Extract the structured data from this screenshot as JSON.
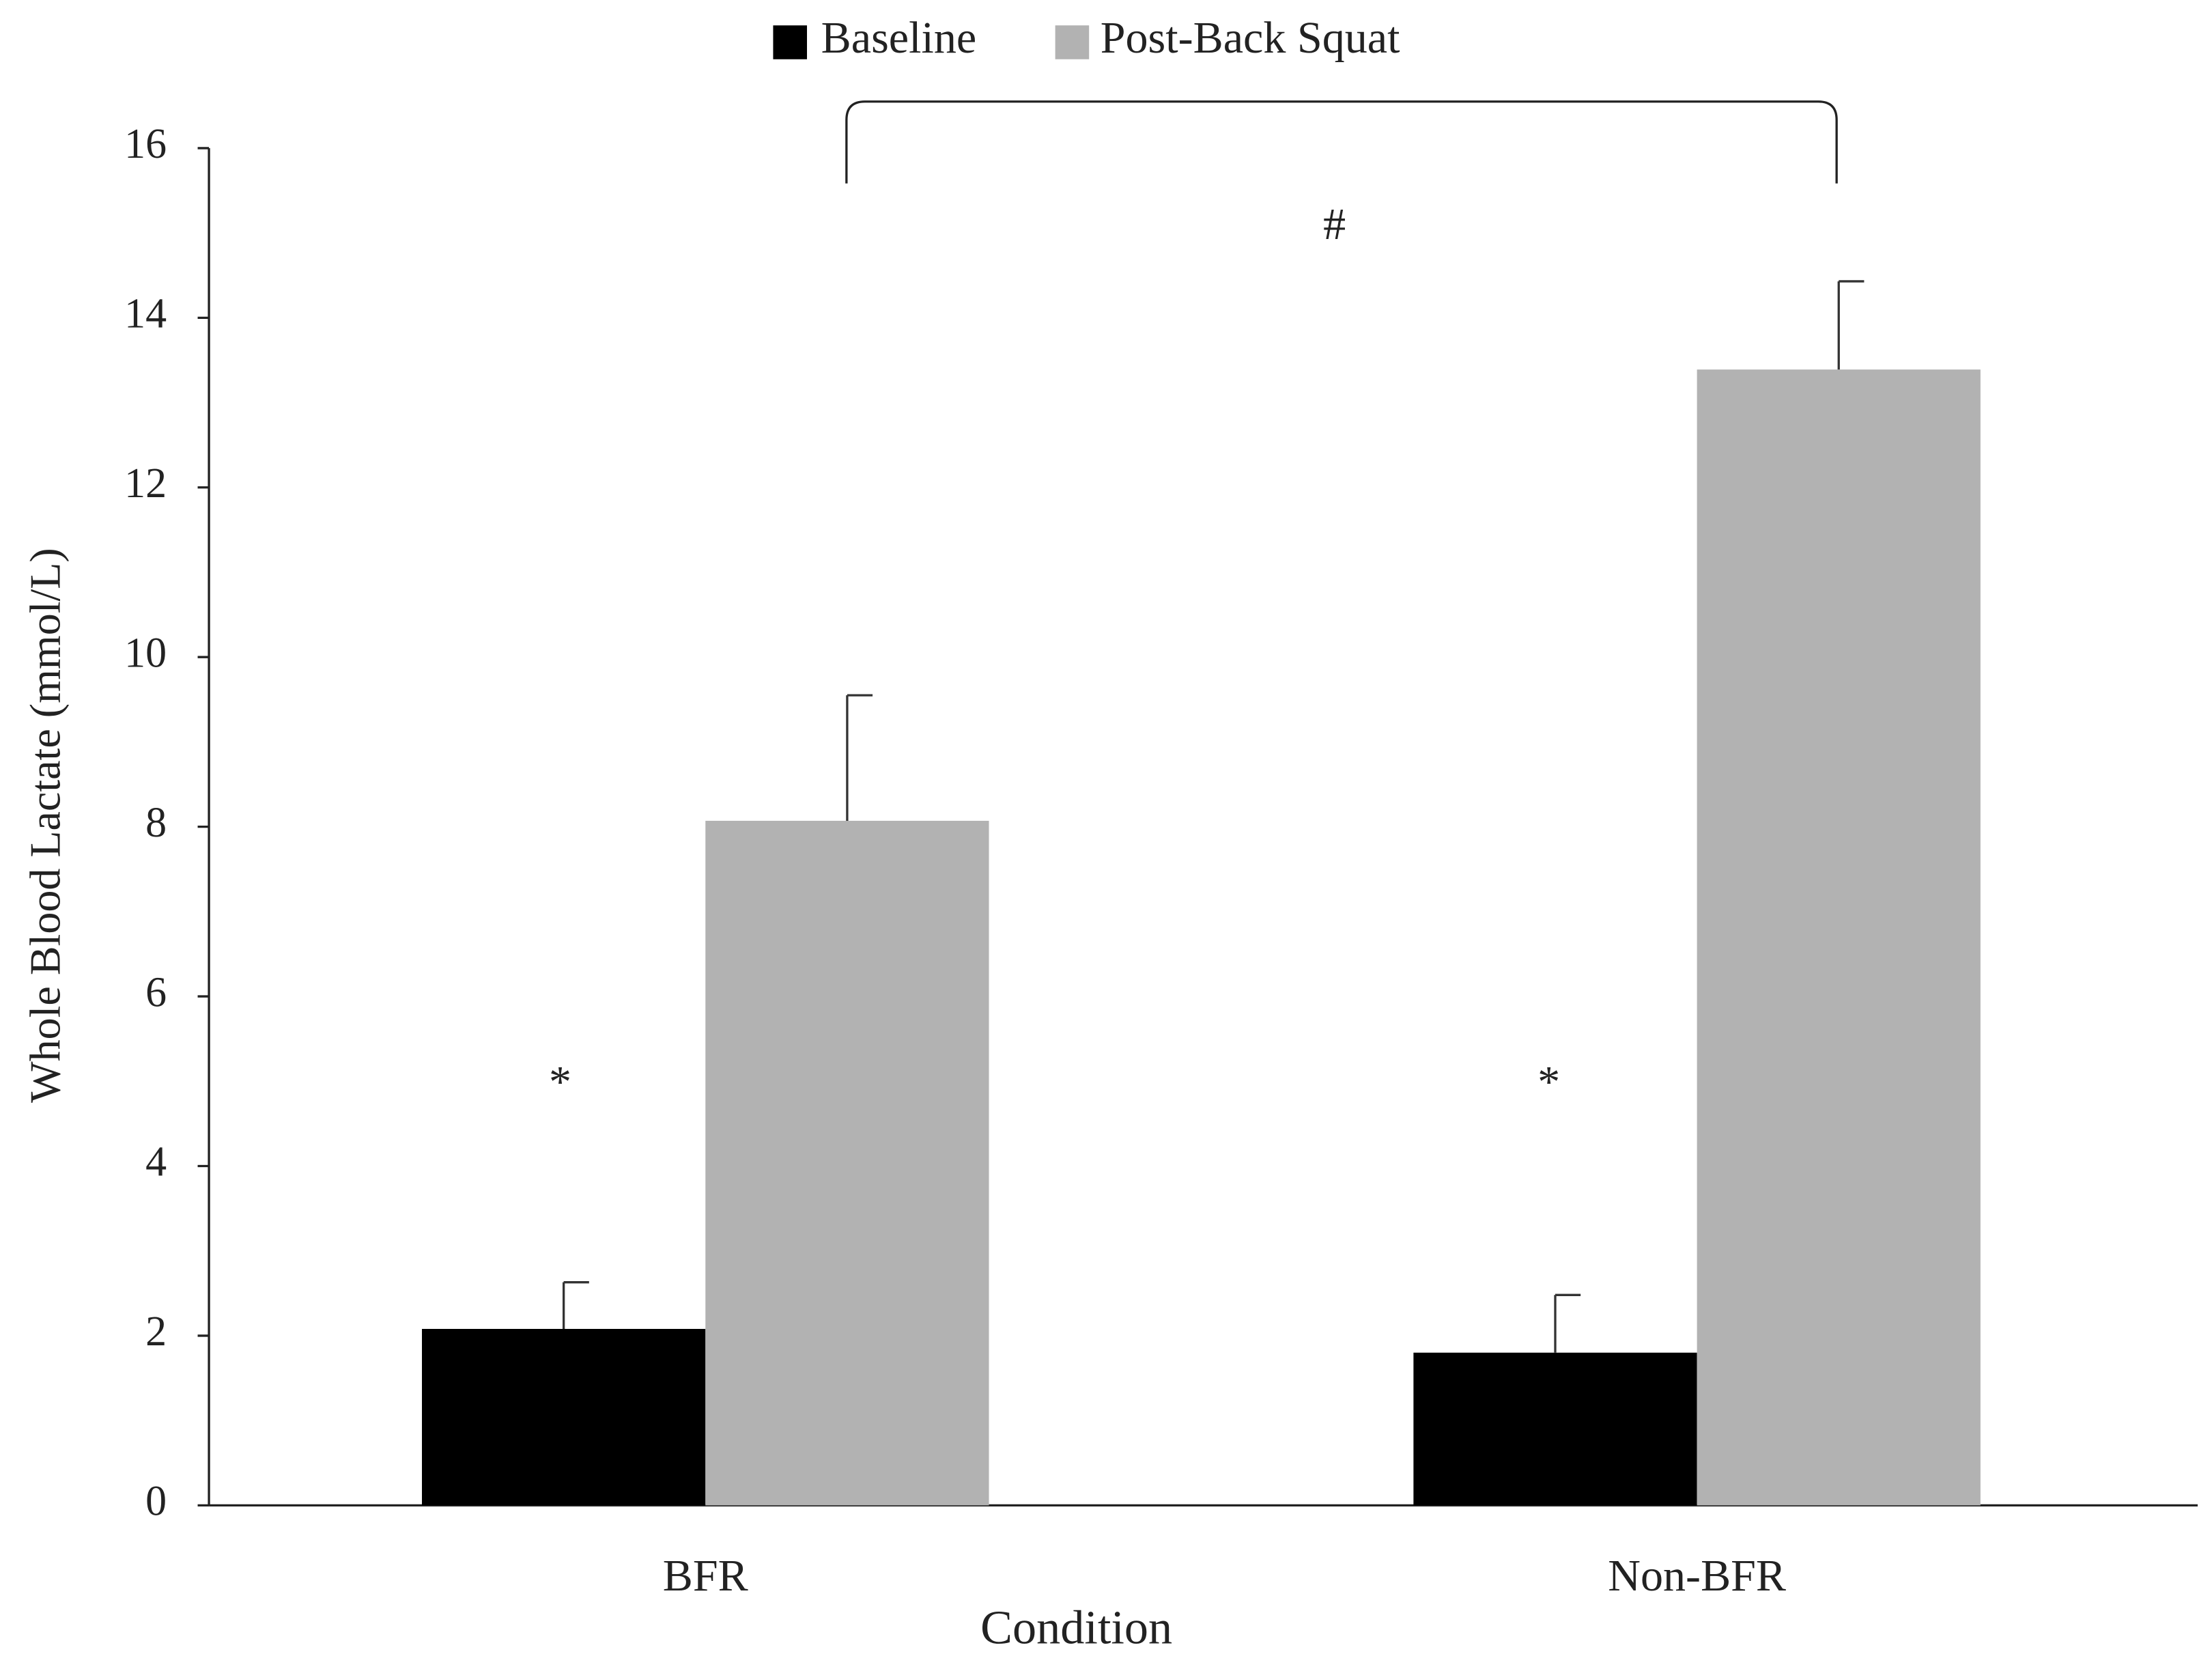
{
  "chart_data": {
    "type": "bar",
    "x_label": "Condition",
    "y_label": "Whole Blood Lactate (mmol/L)",
    "categories": [
      "BFR",
      "Non-BFR"
    ],
    "series": [
      {
        "name": "Baseline",
        "color": "#000000",
        "values": [
          2.08,
          1.8
        ],
        "errors": [
          0.55,
          0.68
        ]
      },
      {
        "name": "Post-Back Squat",
        "color": "#b2b2b2",
        "values": [
          8.07,
          13.39
        ],
        "errors": [
          1.48,
          1.04
        ]
      }
    ],
    "ylim": [
      0,
      16
    ],
    "yticks": [
      0,
      2,
      4,
      6,
      8,
      10,
      12,
      14,
      16
    ],
    "grid": false,
    "legend": "top",
    "annotations": [
      "#",
      "*",
      "*"
    ]
  }
}
